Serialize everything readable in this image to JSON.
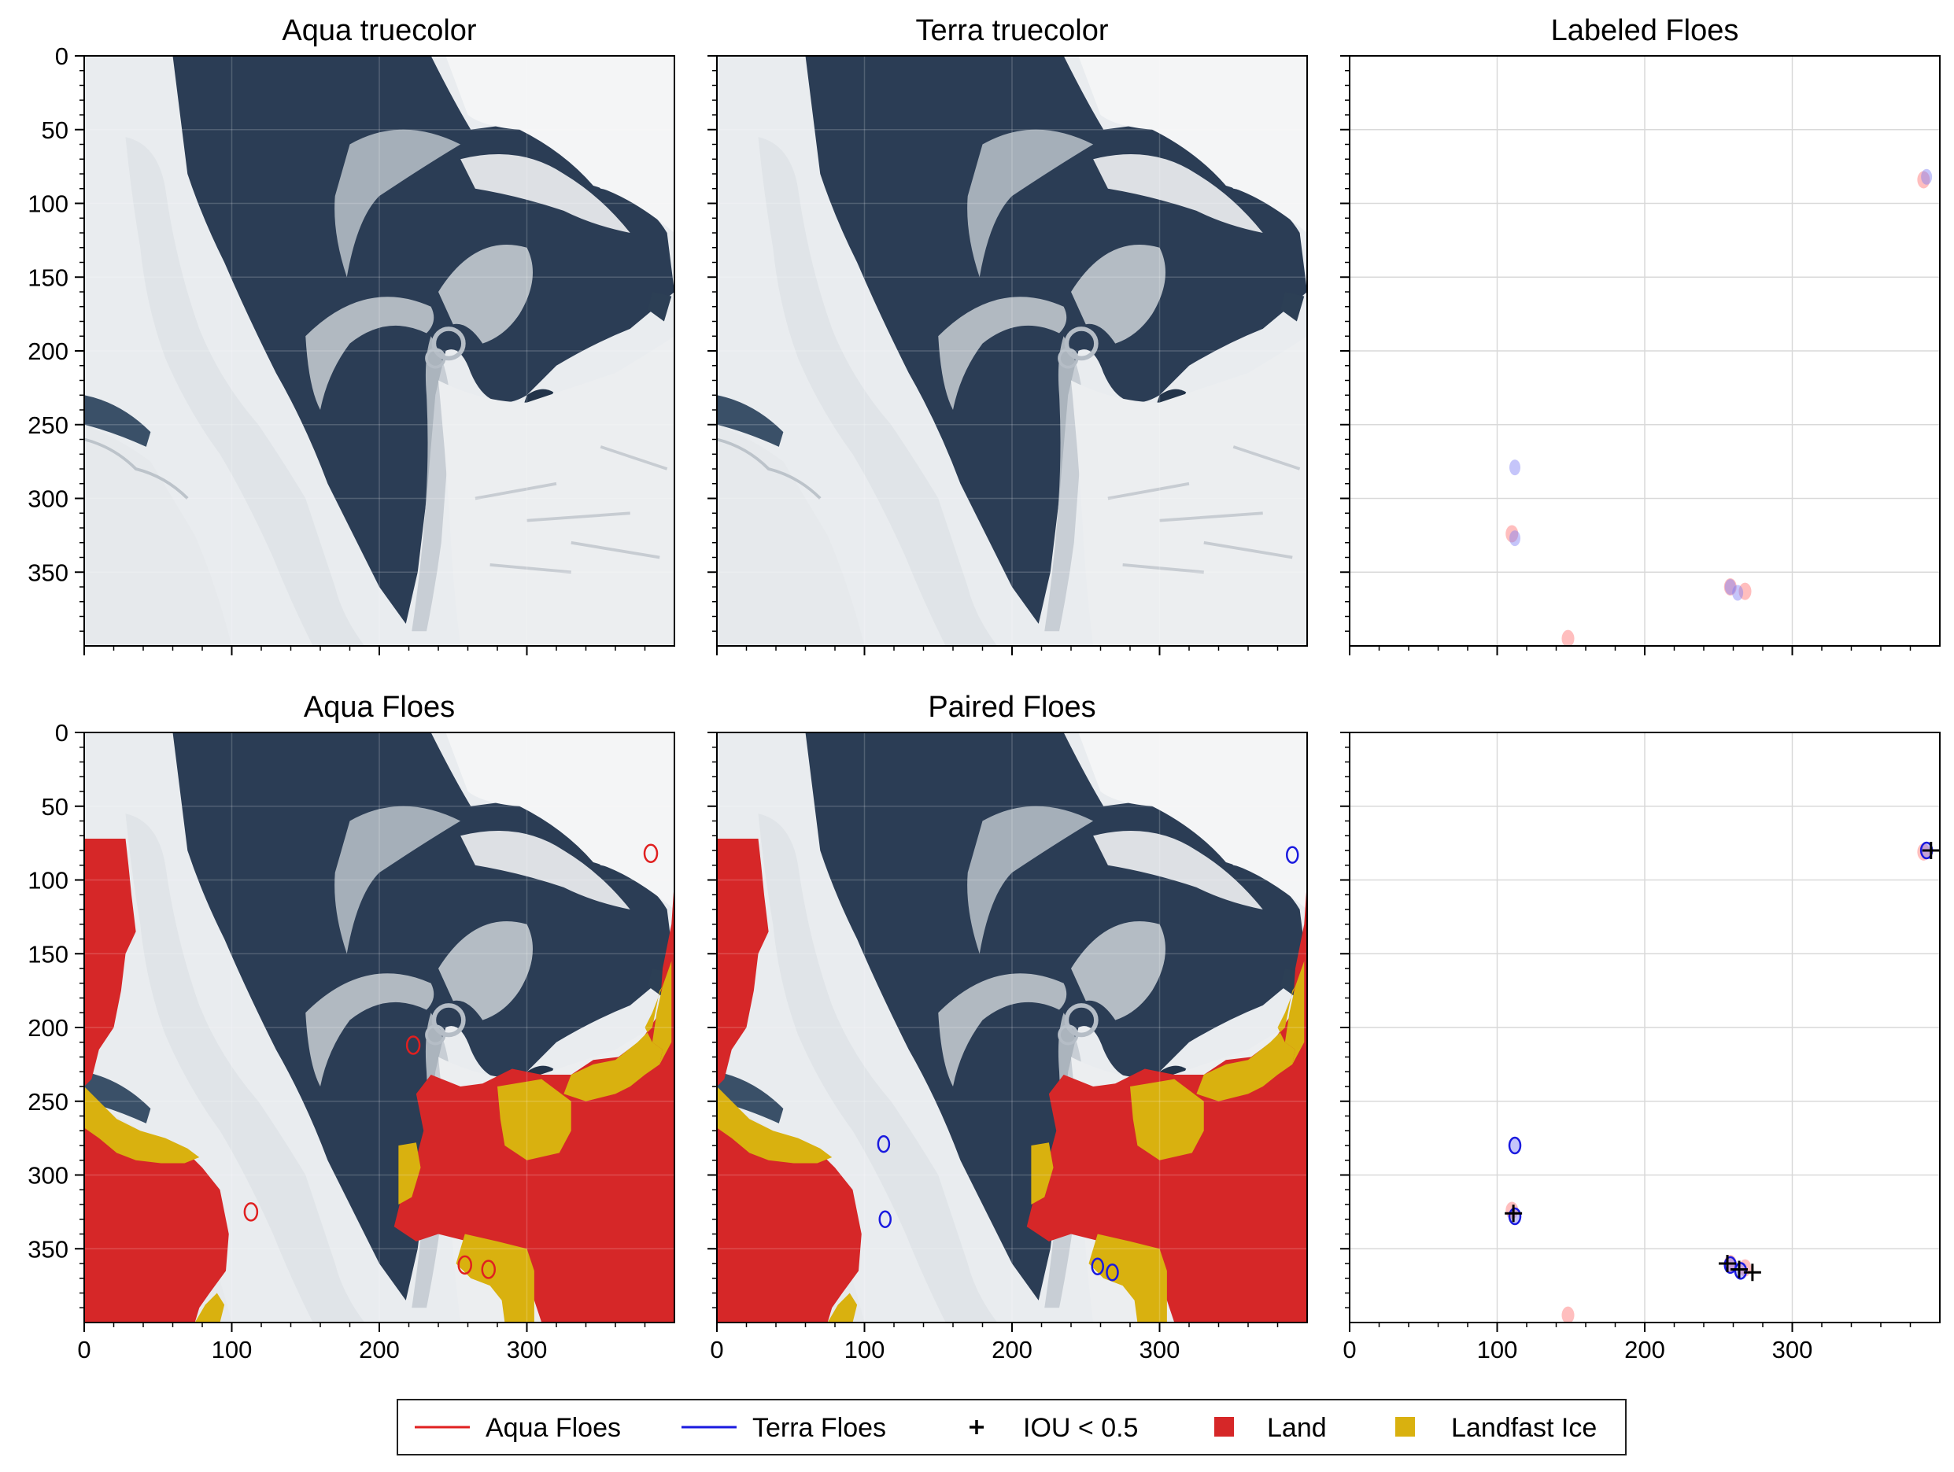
{
  "colors": {
    "aqua": "#e02020",
    "terra": "#1a1adf",
    "land": "#d62728",
    "landfast": "#d9b10f",
    "ocean": "#2b3d55",
    "ice": "#e8ebee",
    "cloud": "#f4f5f6",
    "grid": "#d9d9d9"
  },
  "chart_data": [
    {
      "type": "image",
      "title": "Aqua truecolor",
      "xlim": [
        0,
        400
      ],
      "ylim": [
        400,
        0
      ],
      "xticks": [
        0,
        100,
        200,
        300
      ],
      "yticks": [
        0,
        50,
        100,
        150,
        200,
        250,
        300,
        350
      ],
      "show_xticklabels": false,
      "show_yticklabels": true,
      "image": "truecolor"
    },
    {
      "type": "image",
      "title": "Terra truecolor",
      "xlim": [
        0,
        400
      ],
      "ylim": [
        400,
        0
      ],
      "xticks": [
        0,
        100,
        200,
        300
      ],
      "yticks": [
        0,
        50,
        100,
        150,
        200,
        250,
        300,
        350
      ],
      "show_xticklabels": false,
      "show_yticklabels": false,
      "image": "truecolor"
    },
    {
      "type": "scatter",
      "title": "Labeled Floes",
      "xlim": [
        0,
        400
      ],
      "ylim": [
        400,
        0
      ],
      "xticks": [
        0,
        100,
        200,
        300
      ],
      "yticks": [
        0,
        50,
        100,
        150,
        200,
        250,
        300,
        350
      ],
      "show_xticklabels": false,
      "show_yticklabels": false,
      "grid": true,
      "aqua_floes": [
        [
          110,
          324
        ],
        [
          258,
          360
        ],
        [
          268,
          363
        ],
        [
          389,
          84
        ],
        [
          148,
          395
        ]
      ],
      "terra_floes": [
        [
          112,
          327
        ],
        [
          258,
          360
        ],
        [
          263,
          364
        ],
        [
          391,
          82
        ],
        [
          112,
          279
        ]
      ]
    },
    {
      "type": "image",
      "title": "Aqua Floes",
      "xlim": [
        0,
        400
      ],
      "ylim": [
        400,
        0
      ],
      "xticks": [
        0,
        100,
        200,
        300
      ],
      "yticks": [
        0,
        50,
        100,
        150,
        200,
        250,
        300,
        350
      ],
      "show_xticklabels": true,
      "show_yticklabels": true,
      "image": "truecolor_with_masks",
      "aqua_floes": [
        [
          113,
          325
        ],
        [
          258,
          361
        ],
        [
          274,
          364
        ],
        [
          384,
          82
        ],
        [
          223,
          212
        ]
      ]
    },
    {
      "type": "image",
      "title": "Paired Floes",
      "xlim": [
        0,
        400
      ],
      "ylim": [
        400,
        0
      ],
      "xticks": [
        0,
        100,
        200,
        300
      ],
      "yticks": [
        0,
        50,
        100,
        150,
        200,
        250,
        300,
        350
      ],
      "show_xticklabels": true,
      "show_yticklabels": false,
      "image": "truecolor_with_masks",
      "terra_floes": [
        [
          114,
          330
        ],
        [
          258,
          362
        ],
        [
          268,
          366
        ],
        [
          390,
          83
        ],
        [
          113,
          279
        ]
      ]
    },
    {
      "type": "scatter",
      "title": "",
      "xlim": [
        0,
        400
      ],
      "ylim": [
        400,
        0
      ],
      "xticks": [
        0,
        100,
        200,
        300
      ],
      "yticks": [
        0,
        50,
        100,
        150,
        200,
        250,
        300,
        350
      ],
      "show_xticklabels": true,
      "show_yticklabels": false,
      "grid": true,
      "aqua_floes": [
        [
          110,
          324
        ],
        [
          258,
          360
        ],
        [
          268,
          363
        ],
        [
          389,
          81
        ],
        [
          148,
          395
        ]
      ],
      "terra_floes": [
        [
          112,
          328
        ],
        [
          258,
          361
        ],
        [
          265,
          365
        ],
        [
          391,
          80
        ],
        [
          112,
          280
        ]
      ],
      "iou_markers": [
        [
          111,
          326
        ],
        [
          256,
          360
        ],
        [
          264,
          364
        ],
        [
          273,
          366
        ],
        [
          394,
          80
        ]
      ]
    }
  ],
  "legend": {
    "items": [
      {
        "label": "Aqua Floes",
        "kind": "line",
        "color": "#e02020"
      },
      {
        "label": "Terra Floes",
        "kind": "line",
        "color": "#1a1adf"
      },
      {
        "label": "IOU < 0.5",
        "kind": "plus",
        "color": "#000000"
      },
      {
        "label": "Land",
        "kind": "square",
        "color": "#d62728"
      },
      {
        "label": "Landfast Ice",
        "kind": "square",
        "color": "#d9b10f"
      }
    ]
  }
}
